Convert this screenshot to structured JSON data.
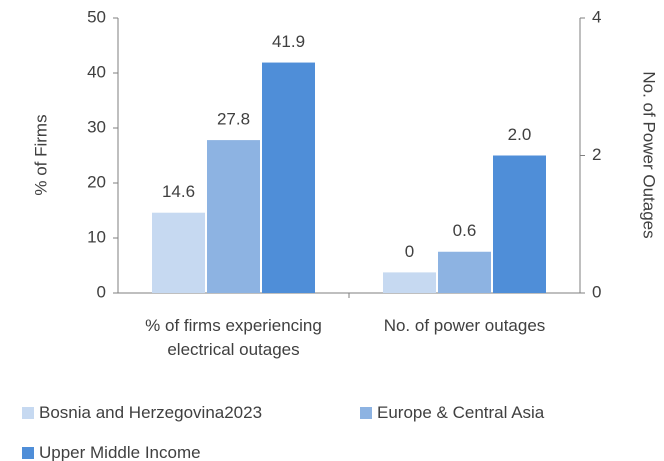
{
  "chart_data": {
    "type": "bar",
    "categories": [
      "% of firms experiencing electrical outages",
      "No. of power outages"
    ],
    "category_axis": [
      "y",
      "y2"
    ],
    "ylabel": "% of Firms",
    "y2label": "No. of Power Outages",
    "ylim": [
      0,
      50
    ],
    "yticks": [
      0,
      10,
      20,
      30,
      40,
      50
    ],
    "y2lim": [
      0,
      4
    ],
    "y2ticks": [
      0,
      2,
      4
    ],
    "series": [
      {
        "name": "Bosnia and Herzegovina2023",
        "color": "#c6d9f1",
        "values": [
          14.6,
          0.3
        ],
        "value_labels": [
          "14.6",
          "0"
        ]
      },
      {
        "name": "Europe & Central Asia",
        "color": "#8db3e2",
        "values": [
          27.8,
          0.6
        ],
        "value_labels": [
          "27.8",
          "0.6"
        ]
      },
      {
        "name": "Upper Middle Income",
        "color": "#4f8ed8",
        "values": [
          41.9,
          2.0
        ],
        "value_labels": [
          "41.9",
          "2.0"
        ]
      }
    ]
  }
}
